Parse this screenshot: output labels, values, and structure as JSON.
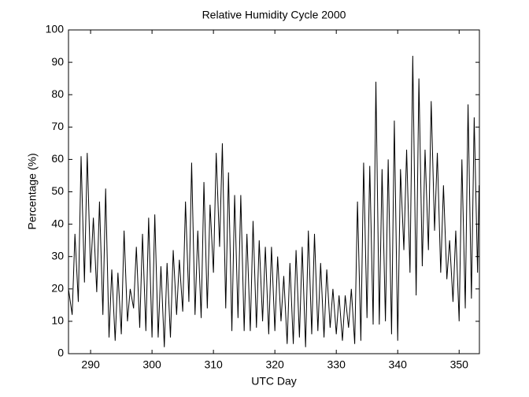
{
  "chart_data": {
    "type": "line",
    "title": "Relative Humidity Cycle 2000",
    "xlabel": "UTC Day",
    "ylabel": "Percentage (%)",
    "x": [
      286.4,
      287,
      287.45,
      288,
      288.45,
      289,
      289.45,
      290,
      290.45,
      291,
      291.45,
      292,
      292.45,
      293,
      293.45,
      294,
      294.45,
      295,
      295.45,
      296,
      296.45,
      297,
      297.45,
      298,
      298.45,
      299,
      299.45,
      300,
      300.45,
      301,
      301.45,
      302,
      302.45,
      303,
      303.45,
      304,
      304.45,
      305,
      305.45,
      306,
      306.45,
      307,
      307.45,
      308,
      308.45,
      309,
      309.45,
      310,
      310.45,
      311,
      311.45,
      312,
      312.45,
      313,
      313.45,
      314,
      314.45,
      315,
      315.45,
      316,
      316.45,
      317,
      317.45,
      318,
      318.45,
      319,
      319.45,
      320,
      320.45,
      321,
      321.45,
      322,
      322.45,
      323,
      323.45,
      324,
      324.45,
      325,
      325.45,
      326,
      326.45,
      327,
      327.45,
      328,
      328.45,
      329,
      329.45,
      330,
      330.45,
      331,
      331.45,
      332,
      332.45,
      333,
      333.45,
      334,
      334.45,
      335,
      335.45,
      336,
      336.45,
      337,
      337.45,
      338,
      338.45,
      339,
      339.45,
      340,
      340.45,
      341,
      341.45,
      342,
      342.45,
      343,
      343.45,
      344,
      344.45,
      345,
      345.45,
      346,
      346.45,
      347,
      347.45,
      348,
      348.45,
      349,
      349.45,
      350,
      350.45,
      351,
      351.45,
      352,
      352.45,
      353,
      353.25
    ],
    "series": [
      {
        "name": "Relative Humidity",
        "color": "#000000",
        "values": [
          20,
          12,
          37,
          16,
          61,
          22,
          62,
          25,
          42,
          19,
          47,
          12,
          51,
          5,
          26,
          4,
          25,
          6,
          38,
          10,
          20,
          14,
          33,
          8,
          37,
          7,
          42,
          5,
          43,
          5,
          27,
          2,
          28,
          5,
          32,
          12,
          29,
          13,
          47,
          16,
          59,
          12,
          38,
          11,
          53,
          14,
          46,
          25,
          62,
          33,
          65,
          14,
          56,
          7,
          49,
          11,
          49,
          7,
          37,
          7,
          41,
          8,
          35,
          10,
          33,
          6,
          33,
          7,
          30,
          10,
          24,
          3,
          28,
          3,
          32,
          5,
          33,
          2,
          38,
          6,
          37,
          7,
          28,
          5,
          26,
          8,
          20,
          6,
          18,
          4,
          18,
          8,
          20,
          3,
          47,
          4,
          59,
          11,
          58,
          9,
          84,
          9,
          57,
          10,
          60,
          6,
          72,
          4,
          57,
          32,
          63,
          25,
          92,
          18,
          85,
          27,
          63,
          32,
          78,
          38,
          62,
          25,
          52,
          23,
          35,
          16,
          38,
          10,
          60,
          14,
          77,
          17,
          73,
          25,
          52
        ]
      }
    ],
    "xlim": [
      286.4,
      353.3
    ],
    "ylim": [
      0,
      100
    ],
    "xticks": [
      290,
      300,
      310,
      320,
      330,
      340,
      350
    ],
    "yticks": [
      0,
      10,
      20,
      30,
      40,
      50,
      60,
      70,
      80,
      90,
      100
    ]
  }
}
